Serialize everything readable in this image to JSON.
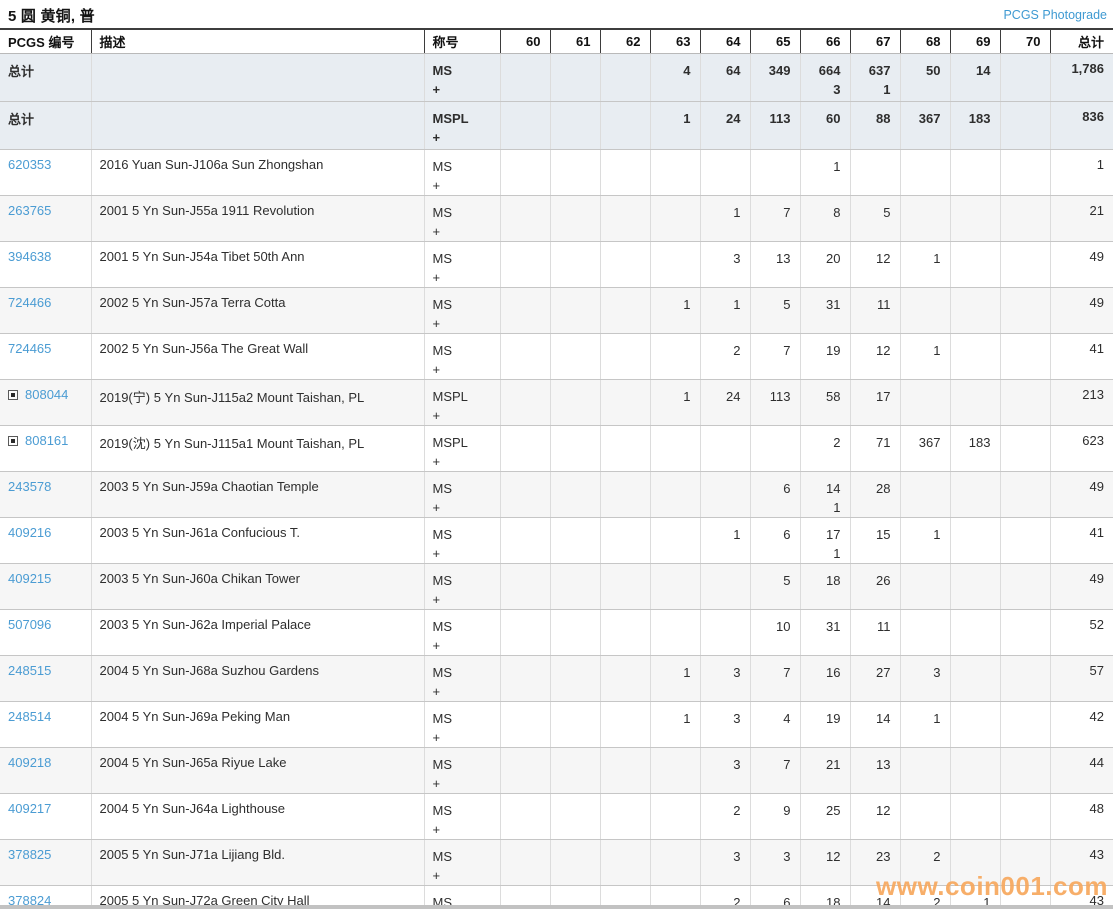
{
  "page": {
    "title": "5 圆 黄铜, 普",
    "top_link": "PCGS Photograde"
  },
  "watermark": "www.coin001.com",
  "colors": {
    "link_blue": "#4b9cd3",
    "summary_row_bg": "#e8edf2",
    "alt_row_bg": "#f6f6f6",
    "watermark_orange": "#f6a75c"
  },
  "table": {
    "headers": [
      "PCGS 编号",
      "描述",
      "称号",
      "60",
      "61",
      "62",
      "63",
      "64",
      "65",
      "66",
      "67",
      "68",
      "69",
      "70",
      "总计"
    ],
    "grade_columns": [
      "60",
      "61",
      "62",
      "63",
      "64",
      "65",
      "66",
      "67",
      "68",
      "69",
      "70"
    ],
    "plus_symbol": "+",
    "summary_rows": [
      {
        "label": "总计",
        "desc": "",
        "designation": "MS",
        "plus": "+",
        "cells": [
          "",
          "",
          "",
          "4",
          "64",
          "349",
          "664",
          "637",
          "50",
          "14",
          ""
        ],
        "subs": [
          "",
          "",
          "",
          "",
          "",
          "",
          "3",
          "1",
          "",
          "",
          ""
        ],
        "total": "1,786"
      },
      {
        "label": "总计",
        "desc": "",
        "designation": "MSPL",
        "plus": "+",
        "cells": [
          "",
          "",
          "",
          "1",
          "24",
          "113",
          "60",
          "88",
          "367",
          "183",
          ""
        ],
        "subs": [
          "",
          "",
          "",
          "",
          "",
          "",
          "",
          "",
          "",
          "",
          ""
        ],
        "total": "836"
      }
    ],
    "rows": [
      {
        "id": "620353",
        "expand": false,
        "desc": "2016 Yuan Sun-J106a Sun Zhongshan",
        "designation": "MS",
        "plus": "+",
        "cells": [
          "",
          "",
          "",
          "",
          "",
          "",
          "1",
          "",
          "",
          "",
          ""
        ],
        "subs": [
          "",
          "",
          "",
          "",
          "",
          "",
          "",
          "",
          "",
          "",
          ""
        ],
        "total": "1"
      },
      {
        "id": "263765",
        "expand": false,
        "desc": "2001 5 Yn Sun-J55a 1911 Revolution",
        "designation": "MS",
        "plus": "+",
        "cells": [
          "",
          "",
          "",
          "",
          "1",
          "7",
          "8",
          "5",
          "",
          "",
          ""
        ],
        "subs": [
          "",
          "",
          "",
          "",
          "",
          "",
          "",
          "",
          "",
          "",
          ""
        ],
        "total": "21"
      },
      {
        "id": "394638",
        "expand": false,
        "desc": "2001 5 Yn Sun-J54a Tibet 50th Ann",
        "designation": "MS",
        "plus": "+",
        "cells": [
          "",
          "",
          "",
          "",
          "3",
          "13",
          "20",
          "12",
          "1",
          "",
          ""
        ],
        "subs": [
          "",
          "",
          "",
          "",
          "",
          "",
          "",
          "",
          "",
          "",
          ""
        ],
        "total": "49"
      },
      {
        "id": "724466",
        "expand": false,
        "desc": "2002 5 Yn Sun-J57a Terra Cotta",
        "designation": "MS",
        "plus": "+",
        "cells": [
          "",
          "",
          "",
          "1",
          "1",
          "5",
          "31",
          "11",
          "",
          "",
          ""
        ],
        "subs": [
          "",
          "",
          "",
          "",
          "",
          "",
          "",
          "",
          "",
          "",
          ""
        ],
        "total": "49"
      },
      {
        "id": "724465",
        "expand": false,
        "desc": "2002 5 Yn Sun-J56a The Great Wall",
        "designation": "MS",
        "plus": "+",
        "cells": [
          "",
          "",
          "",
          "",
          "2",
          "7",
          "19",
          "12",
          "1",
          "",
          ""
        ],
        "subs": [
          "",
          "",
          "",
          "",
          "",
          "",
          "",
          "",
          "",
          "",
          ""
        ],
        "total": "41"
      },
      {
        "id": "808044",
        "expand": true,
        "desc": "2019(宁) 5 Yn Sun-J115a2 Mount Taishan, PL",
        "designation": "MSPL",
        "plus": "+",
        "cells": [
          "",
          "",
          "",
          "1",
          "24",
          "113",
          "58",
          "17",
          "",
          "",
          ""
        ],
        "subs": [
          "",
          "",
          "",
          "",
          "",
          "",
          "",
          "",
          "",
          "",
          ""
        ],
        "total": "213"
      },
      {
        "id": "808161",
        "expand": true,
        "desc": "2019(沈) 5 Yn Sun-J115a1 Mount Taishan, PL",
        "designation": "MSPL",
        "plus": "+",
        "cells": [
          "",
          "",
          "",
          "",
          "",
          "",
          "2",
          "71",
          "367",
          "183",
          ""
        ],
        "subs": [
          "",
          "",
          "",
          "",
          "",
          "",
          "",
          "",
          "",
          "",
          ""
        ],
        "total": "623"
      },
      {
        "id": "243578",
        "expand": false,
        "desc": "2003 5 Yn Sun-J59a Chaotian Temple",
        "designation": "MS",
        "plus": "+",
        "cells": [
          "",
          "",
          "",
          "",
          "",
          "6",
          "14",
          "28",
          "",
          "",
          ""
        ],
        "subs": [
          "",
          "",
          "",
          "",
          "",
          "",
          "1",
          "",
          "",
          "",
          ""
        ],
        "total": "49"
      },
      {
        "id": "409216",
        "expand": false,
        "desc": "2003 5 Yn Sun-J61a Confucious T.",
        "designation": "MS",
        "plus": "+",
        "cells": [
          "",
          "",
          "",
          "",
          "1",
          "6",
          "17",
          "15",
          "1",
          "",
          ""
        ],
        "subs": [
          "",
          "",
          "",
          "",
          "",
          "",
          "1",
          "",
          "",
          "",
          ""
        ],
        "total": "41"
      },
      {
        "id": "409215",
        "expand": false,
        "desc": "2003 5 Yn Sun-J60a Chikan Tower",
        "designation": "MS",
        "plus": "+",
        "cells": [
          "",
          "",
          "",
          "",
          "",
          "5",
          "18",
          "26",
          "",
          "",
          ""
        ],
        "subs": [
          "",
          "",
          "",
          "",
          "",
          "",
          "",
          "",
          "",
          "",
          ""
        ],
        "total": "49"
      },
      {
        "id": "507096",
        "expand": false,
        "desc": "2003 5 Yn Sun-J62a Imperial Palace",
        "designation": "MS",
        "plus": "+",
        "cells": [
          "",
          "",
          "",
          "",
          "",
          "10",
          "31",
          "11",
          "",
          "",
          ""
        ],
        "subs": [
          "",
          "",
          "",
          "",
          "",
          "",
          "",
          "",
          "",
          "",
          ""
        ],
        "total": "52"
      },
      {
        "id": "248515",
        "expand": false,
        "desc": "2004 5 Yn Sun-J68a Suzhou Gardens",
        "designation": "MS",
        "plus": "+",
        "cells": [
          "",
          "",
          "",
          "1",
          "3",
          "7",
          "16",
          "27",
          "3",
          "",
          ""
        ],
        "subs": [
          "",
          "",
          "",
          "",
          "",
          "",
          "",
          "",
          "",
          "",
          ""
        ],
        "total": "57"
      },
      {
        "id": "248514",
        "expand": false,
        "desc": "2004 5 Yn Sun-J69a Peking Man",
        "designation": "MS",
        "plus": "+",
        "cells": [
          "",
          "",
          "",
          "1",
          "3",
          "4",
          "19",
          "14",
          "1",
          "",
          ""
        ],
        "subs": [
          "",
          "",
          "",
          "",
          "",
          "",
          "",
          "",
          "",
          "",
          ""
        ],
        "total": "42"
      },
      {
        "id": "409218",
        "expand": false,
        "desc": "2004 5 Yn Sun-J65a Riyue Lake",
        "designation": "MS",
        "plus": "+",
        "cells": [
          "",
          "",
          "",
          "",
          "3",
          "7",
          "21",
          "13",
          "",
          "",
          ""
        ],
        "subs": [
          "",
          "",
          "",
          "",
          "",
          "",
          "",
          "",
          "",
          "",
          ""
        ],
        "total": "44"
      },
      {
        "id": "409217",
        "expand": false,
        "desc": "2004 5 Yn Sun-J64a Lighthouse",
        "designation": "MS",
        "plus": "+",
        "cells": [
          "",
          "",
          "",
          "",
          "2",
          "9",
          "25",
          "12",
          "",
          "",
          ""
        ],
        "subs": [
          "",
          "",
          "",
          "",
          "",
          "",
          "",
          "",
          "",
          "",
          ""
        ],
        "total": "48"
      },
      {
        "id": "378825",
        "expand": false,
        "desc": "2005 5 Yn Sun-J71a Lijiang Bld.",
        "designation": "MS",
        "plus": "+",
        "cells": [
          "",
          "",
          "",
          "",
          "3",
          "3",
          "12",
          "23",
          "2",
          "",
          ""
        ],
        "subs": [
          "",
          "",
          "",
          "",
          "",
          "",
          "",
          "",
          "",
          "",
          ""
        ],
        "total": "43"
      },
      {
        "id": "378824",
        "expand": false,
        "desc": "2005 5 Yn Sun-J72a Green City Hall",
        "designation": "MS",
        "plus": "+",
        "cells": [
          "",
          "",
          "",
          "",
          "2",
          "6",
          "18",
          "14",
          "2",
          "1",
          ""
        ],
        "subs": [
          "",
          "",
          "",
          "",
          "",
          "",
          "",
          "",
          "",
          "",
          ""
        ],
        "total": "43"
      }
    ]
  }
}
